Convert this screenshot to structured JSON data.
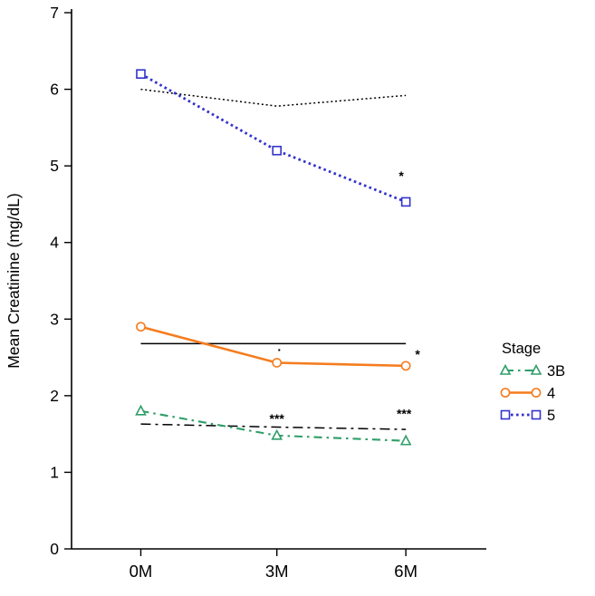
{
  "chart_data": {
    "type": "line",
    "title": "",
    "ylabel": "Mean Creatinine (mg/dL)",
    "xlabel": "",
    "ylim": [
      0,
      7
    ],
    "yticks": [
      0,
      1,
      2,
      3,
      4,
      5,
      6,
      7
    ],
    "categories": [
      "0M",
      "3M",
      "6M"
    ],
    "series": [
      {
        "name": "3B",
        "values": [
          1.8,
          1.48,
          1.41
        ],
        "color": "#2f9e68",
        "marker": "triangle",
        "line_style": "dash-dot"
      },
      {
        "name": "4",
        "values": [
          2.9,
          2.43,
          2.39
        ],
        "color": "#f57c1f",
        "marker": "circle",
        "line_style": "solid"
      },
      {
        "name": "5",
        "values": [
          6.2,
          5.2,
          4.53
        ],
        "color": "#3333cc",
        "marker": "square",
        "line_style": "dotted"
      }
    ],
    "reference_lines": [
      {
        "name": "stage-5-reference",
        "values": [
          6.0,
          5.78,
          5.92
        ],
        "color": "#000000",
        "line_style": "dotted"
      },
      {
        "name": "stage-4-reference",
        "values": [
          2.68,
          2.68,
          2.68
        ],
        "color": "#000000",
        "line_style": "solid"
      },
      {
        "name": "stage-3B-reference",
        "values": [
          1.63,
          1.59,
          1.56
        ],
        "color": "#000000",
        "line_style": "dash-dot"
      }
    ],
    "annotations": [
      {
        "text": "*",
        "x_index": 2,
        "y": 4.87,
        "dx": -5
      },
      {
        "text": "·",
        "x_index": 1,
        "y": 2.6,
        "dx": 3
      },
      {
        "text": "*",
        "x_index": 2,
        "y": 2.54,
        "dx": 13
      },
      {
        "text": "***",
        "x_index": 1,
        "y": 1.7,
        "dx": 0
      },
      {
        "text": "***",
        "x_index": 2,
        "y": 1.77,
        "dx": -2
      }
    ],
    "legend": {
      "title": "Stage",
      "position": "right",
      "entries": [
        "3B",
        "4",
        "5"
      ]
    },
    "grid": false
  }
}
